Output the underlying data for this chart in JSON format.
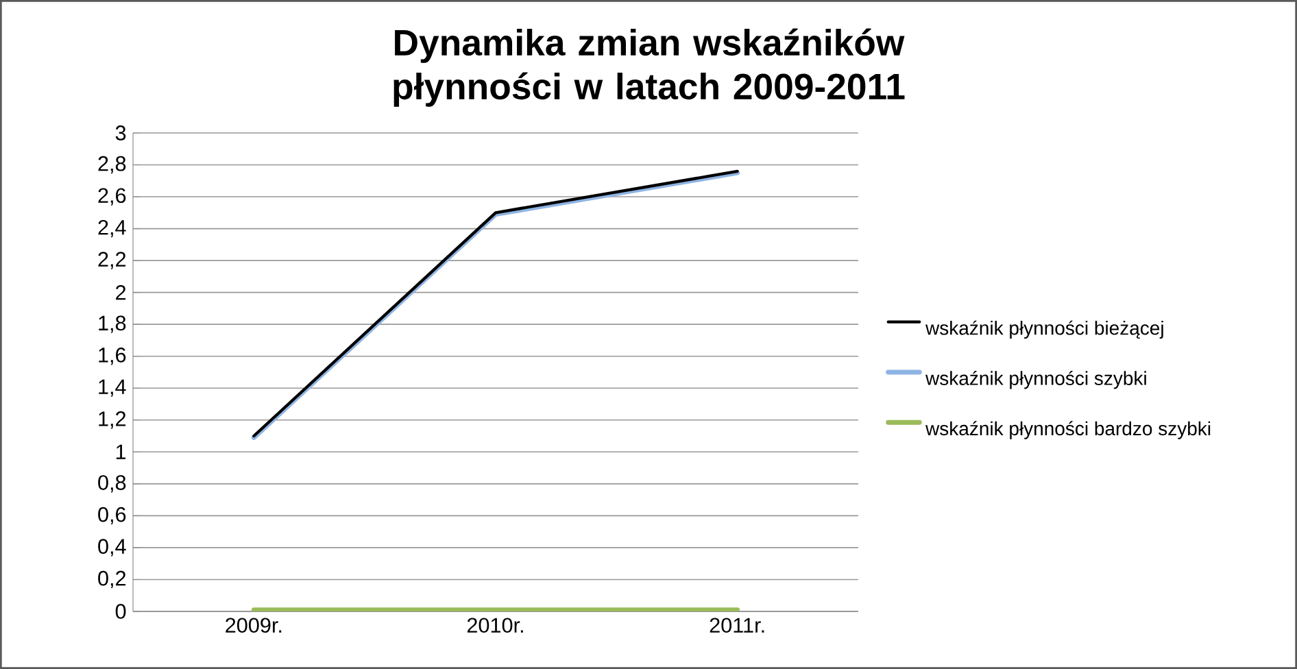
{
  "chart_data": {
    "type": "line",
    "title": "Dynamika zmian wskaźników płynności w latach 2009-2011",
    "categories": [
      "2009r.",
      "2010r.",
      "2011r."
    ],
    "series": [
      {
        "name": "wskaźnik płynności bieżącej",
        "color": "#000000",
        "values": [
          1.1,
          2.5,
          2.76
        ]
      },
      {
        "name": "wskaźnik płynności szybki",
        "color": "#8eb4e3",
        "values": [
          1.09,
          2.49,
          2.75
        ]
      },
      {
        "name": "wskaźnik płynności bardzo szybki",
        "color": "#9bbb59",
        "values": [
          0.01,
          0.01,
          0.01
        ]
      }
    ],
    "ylim": [
      0,
      3
    ],
    "yticks": [
      {
        "value": 0,
        "label": "0"
      },
      {
        "value": 0.2,
        "label": "0,2"
      },
      {
        "value": 0.4,
        "label": "0,4"
      },
      {
        "value": 0.6,
        "label": "0,6"
      },
      {
        "value": 0.8,
        "label": "0,8"
      },
      {
        "value": 1,
        "label": "1"
      },
      {
        "value": 1.2,
        "label": "1,2"
      },
      {
        "value": 1.4,
        "label": "1,4"
      },
      {
        "value": 1.6,
        "label": "1,6"
      },
      {
        "value": 1.8,
        "label": "1,8"
      },
      {
        "value": 2,
        "label": "2"
      },
      {
        "value": 2.2,
        "label": "2,2"
      },
      {
        "value": 2.4,
        "label": "2,4"
      },
      {
        "value": 2.6,
        "label": "2,6"
      },
      {
        "value": 2.8,
        "label": "2,8"
      },
      {
        "value": 3,
        "label": "3"
      }
    ],
    "grid": "y",
    "legend": "right",
    "marker": "none",
    "line_style": "solid"
  }
}
